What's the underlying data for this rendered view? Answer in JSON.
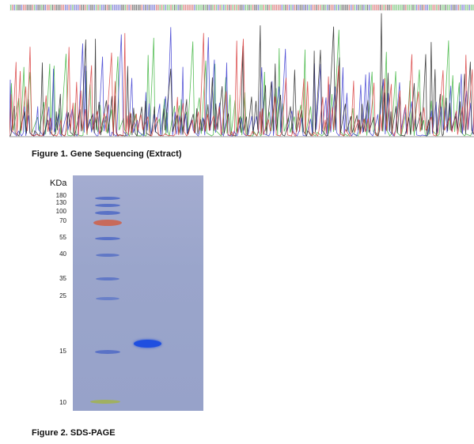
{
  "figure1": {
    "caption": "Figure 1. Gene Sequencing (Extract)",
    "trace_colors": {
      "A": "#3cb43c",
      "C": "#3a3ad0",
      "G": "#222222",
      "T": "#d83a3a",
      "N": "#9b59b6"
    }
  },
  "figure2": {
    "caption": "Figure 2. SDS-PAGE",
    "unit_label": "KDa",
    "marker_labels": [
      "180",
      "130",
      "100",
      "70",
      "55",
      "40",
      "35",
      "25",
      "15",
      "10"
    ],
    "colors": {
      "gel": "#9aa5cb",
      "marker_band": "#4f6cc8",
      "marker_70": "#c86a5a",
      "marker_10": "#a0b060",
      "sample_band": "#1f4fe0"
    }
  }
}
